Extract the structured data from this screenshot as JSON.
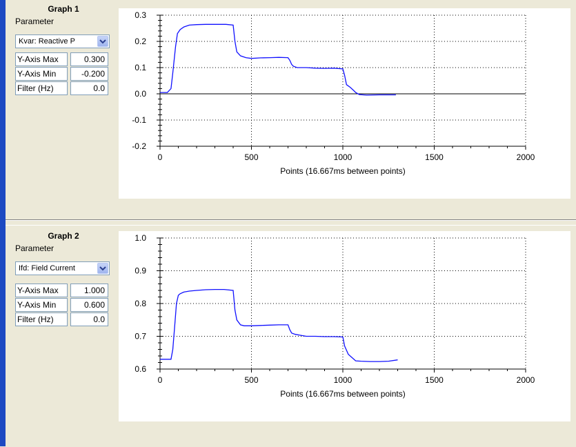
{
  "graphs": [
    {
      "title": "Graph 1",
      "parameter_label": "Parameter",
      "parameter_value": "Kvar: Reactive P",
      "fields": [
        {
          "label": "Y-Axis Max",
          "value": "0.300"
        },
        {
          "label": "Y-Axis Min",
          "value": "-0.200"
        },
        {
          "label": "Filter (Hz)",
          "value": "0.0"
        }
      ]
    },
    {
      "title": "Graph 2",
      "parameter_label": "Parameter",
      "parameter_value": "Ifd: Field Current",
      "fields": [
        {
          "label": "Y-Axis Max",
          "value": "1.000"
        },
        {
          "label": "Y-Axis Min",
          "value": "0.600"
        },
        {
          "label": "Filter (Hz)",
          "value": "0.0"
        }
      ]
    }
  ],
  "chart_data": [
    {
      "type": "line",
      "xlabel": "Points (16.667ms between points)",
      "ylabel": "",
      "xlim": [
        0,
        2000
      ],
      "ylim": [
        -0.2,
        0.3
      ],
      "x_ticks": [
        "0",
        "500",
        "1000",
        "1500",
        "2000"
      ],
      "y_ticks": [
        "-0.2",
        "-0.1",
        "0.0",
        "0.1",
        "0.2",
        "0.3"
      ],
      "grid": true,
      "zero_line": true,
      "series_color": "#1010ff",
      "series": [
        {
          "x": [
            0,
            40,
            60,
            70,
            85,
            95,
            110,
            130,
            160,
            200,
            250,
            300,
            360,
            400,
            410,
            420,
            440,
            470,
            500,
            550,
            600,
            650,
            700,
            710,
            720,
            730,
            750,
            800,
            850,
            900,
            950,
            1000,
            1010,
            1020,
            1040,
            1060,
            1070,
            1090,
            1110,
            1130,
            1200,
            1250,
            1290
          ],
          "y": [
            0.005,
            0.005,
            0.02,
            0.08,
            0.18,
            0.23,
            0.245,
            0.255,
            0.262,
            0.264,
            0.265,
            0.265,
            0.265,
            0.262,
            0.2,
            0.16,
            0.145,
            0.138,
            0.135,
            0.137,
            0.138,
            0.139,
            0.138,
            0.128,
            0.112,
            0.105,
            0.1,
            0.1,
            0.098,
            0.097,
            0.098,
            0.095,
            0.07,
            0.035,
            0.025,
            0.012,
            0.005,
            -0.003,
            -0.004,
            -0.005,
            -0.004,
            -0.004,
            -0.004
          ]
        }
      ]
    },
    {
      "type": "line",
      "xlabel": "Points (16.667ms between points)",
      "ylabel": "",
      "xlim": [
        0,
        2000
      ],
      "ylim": [
        0.6,
        1.0
      ],
      "x_ticks": [
        "0",
        "500",
        "1000",
        "1500",
        "2000"
      ],
      "y_ticks": [
        "0.6",
        "0.7",
        "0.8",
        "0.9",
        "1.0"
      ],
      "grid": true,
      "zero_line": false,
      "series_color": "#1010ff",
      "series": [
        {
          "x": [
            0,
            60,
            70,
            80,
            90,
            100,
            110,
            130,
            160,
            200,
            250,
            300,
            350,
            400,
            410,
            420,
            440,
            460,
            500,
            550,
            600,
            650,
            700,
            710,
            720,
            740,
            770,
            800,
            850,
            900,
            950,
            1000,
            1010,
            1030,
            1050,
            1070,
            1100,
            1150,
            1200,
            1250,
            1300
          ],
          "y": [
            0.63,
            0.63,
            0.66,
            0.73,
            0.8,
            0.825,
            0.83,
            0.835,
            0.838,
            0.84,
            0.842,
            0.843,
            0.843,
            0.84,
            0.78,
            0.75,
            0.735,
            0.732,
            0.732,
            0.733,
            0.734,
            0.735,
            0.735,
            0.72,
            0.71,
            0.706,
            0.703,
            0.7,
            0.7,
            0.699,
            0.699,
            0.698,
            0.67,
            0.645,
            0.635,
            0.625,
            0.624,
            0.623,
            0.623,
            0.624,
            0.628
          ]
        }
      ]
    }
  ]
}
